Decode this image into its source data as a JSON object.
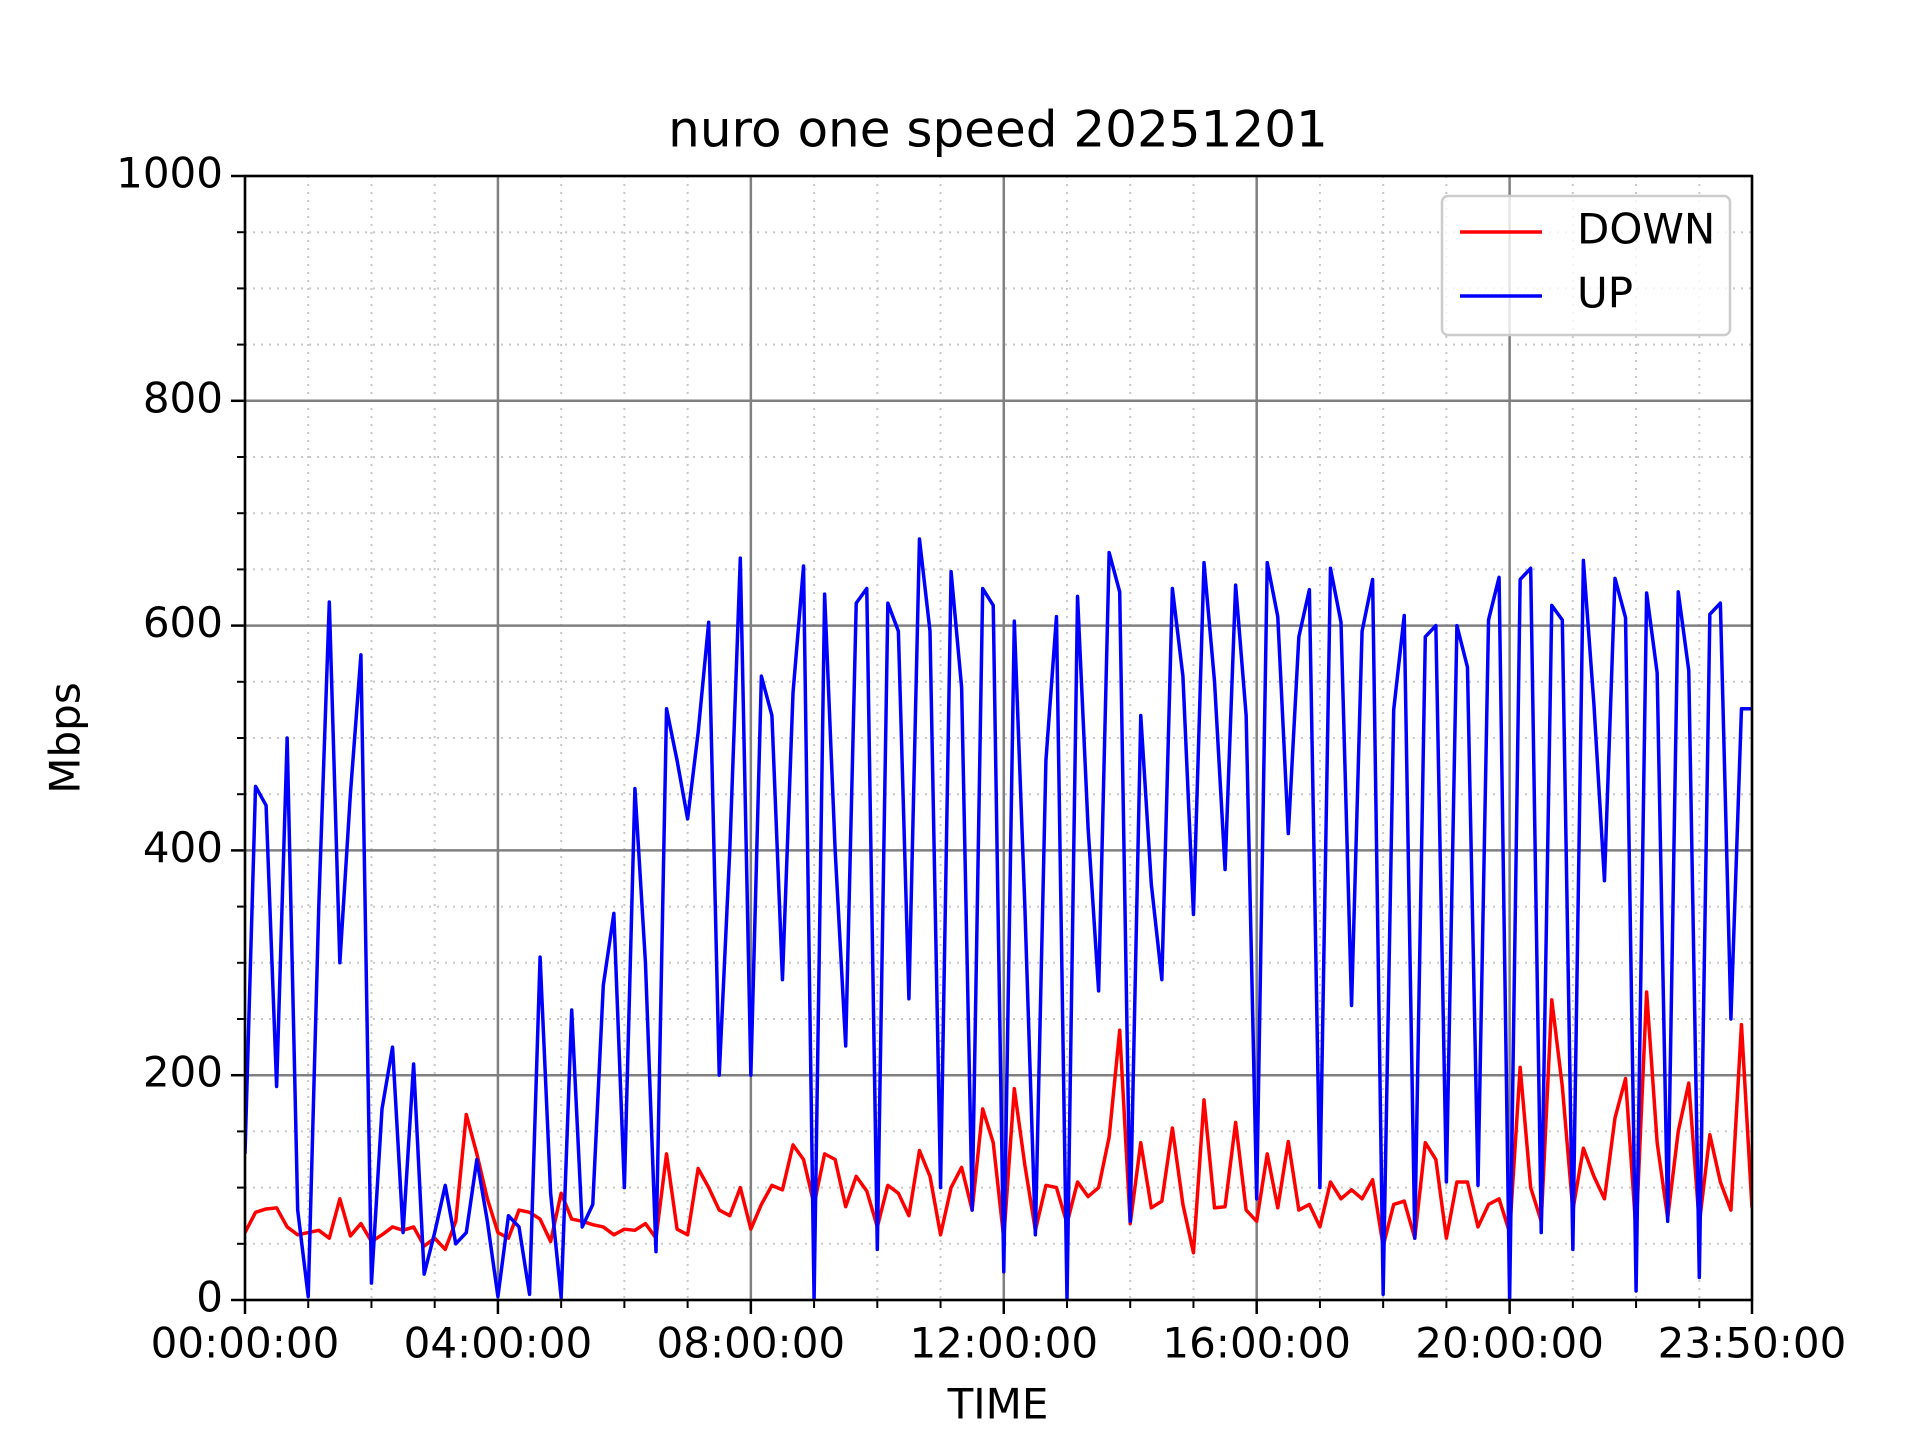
{
  "chart_data": {
    "type": "line",
    "title": "nuro one speed 20251201",
    "xlabel": "TIME",
    "ylabel": "Mbps",
    "x": [
      0,
      10,
      20,
      30,
      40,
      50,
      60,
      70,
      80,
      90,
      100,
      110,
      120,
      130,
      140,
      150,
      160,
      170,
      180,
      190,
      200,
      210,
      220,
      230,
      240,
      250,
      260,
      270,
      280,
      290,
      300,
      310,
      320,
      330,
      340,
      350,
      360,
      370,
      380,
      390,
      400,
      410,
      420,
      430,
      440,
      450,
      460,
      470,
      480,
      490,
      500,
      510,
      520,
      530,
      540,
      550,
      560,
      570,
      580,
      590,
      600,
      610,
      620,
      630,
      640,
      650,
      660,
      670,
      680,
      690,
      700,
      710,
      720,
      730,
      740,
      750,
      760,
      770,
      780,
      790,
      800,
      810,
      820,
      830,
      840,
      850,
      860,
      870,
      880,
      890,
      900,
      910,
      920,
      930,
      940,
      950,
      960,
      970,
      980,
      990,
      1000,
      1010,
      1020,
      1030,
      1040,
      1050,
      1060,
      1070,
      1080,
      1090,
      1100,
      1110,
      1120,
      1130,
      1140,
      1150,
      1160,
      1170,
      1180,
      1190,
      1200,
      1210,
      1220,
      1230,
      1240,
      1250,
      1260,
      1270,
      1280,
      1290,
      1300,
      1310,
      1320,
      1330,
      1340,
      1350,
      1360,
      1370,
      1380,
      1390,
      1400,
      1410,
      1420,
      1430
    ],
    "series": [
      {
        "name": "DOWN",
        "color": "#ff0000",
        "values": [
          60,
          78,
          81,
          82,
          65,
          58,
          60,
          62,
          55,
          90,
          57,
          68,
          52,
          58,
          65,
          62,
          65,
          48,
          55,
          45,
          70,
          165,
          130,
          90,
          60,
          55,
          80,
          78,
          72,
          52,
          95,
          72,
          70,
          67,
          65,
          58,
          63,
          62,
          68,
          55,
          130,
          63,
          58,
          117,
          100,
          80,
          75,
          100,
          63,
          85,
          102,
          98,
          138,
          125,
          85,
          130,
          125,
          83,
          110,
          97,
          65,
          102,
          95,
          75,
          133,
          110,
          58,
          100,
          118,
          80,
          170,
          140,
          55,
          188,
          120,
          62,
          102,
          100,
          68,
          105,
          92,
          100,
          145,
          240,
          68,
          140,
          82,
          88,
          153,
          85,
          42,
          178,
          82,
          83,
          158,
          80,
          70,
          130,
          82,
          141,
          80,
          85,
          65,
          105,
          90,
          98,
          90,
          107,
          48,
          85,
          88,
          55,
          140,
          125,
          55,
          105,
          105,
          65,
          85,
          90,
          60,
          207,
          100,
          70,
          267,
          190,
          80,
          135,
          110,
          90,
          162,
          197,
          60,
          274,
          140,
          73,
          150,
          193,
          68,
          147,
          105,
          80,
          245,
          82
        ]
      },
      {
        "name": "UP",
        "color": "#0000ff",
        "values": [
          130,
          457,
          440,
          190,
          500,
          80,
          3,
          350,
          621,
          300,
          450,
          574,
          15,
          170,
          225,
          60,
          210,
          23,
          60,
          102,
          50,
          60,
          125,
          70,
          3,
          75,
          65,
          5,
          305,
          95,
          2,
          258,
          65,
          85,
          280,
          344,
          100,
          455,
          300,
          43,
          526,
          480,
          428,
          505,
          603,
          200,
          400,
          660,
          200,
          555,
          520,
          285,
          540,
          653,
          0,
          628,
          400,
          226,
          620,
          633,
          45,
          620,
          595,
          268,
          677,
          595,
          100,
          648,
          545,
          80,
          633,
          618,
          25,
          604,
          350,
          58,
          480,
          608,
          0,
          626,
          420,
          275,
          665,
          630,
          70,
          520,
          370,
          285,
          633,
          555,
          343,
          656,
          550,
          383,
          636,
          520,
          90,
          656,
          608,
          415,
          590,
          632,
          100,
          651,
          603,
          262,
          595,
          641,
          5,
          525,
          609,
          55,
          590,
          600,
          105,
          600,
          563,
          102,
          605,
          643,
          0,
          641,
          651,
          60,
          618,
          605,
          45,
          658,
          530,
          373,
          642,
          607,
          8,
          629,
          558,
          70,
          630,
          560,
          20,
          610,
          620,
          250,
          526,
          526
        ]
      }
    ],
    "xlim": [
      0,
      1430
    ],
    "xticks": [
      {
        "value": 0,
        "label": "00:00:00"
      },
      {
        "value": 240,
        "label": "04:00:00"
      },
      {
        "value": 480,
        "label": "08:00:00"
      },
      {
        "value": 720,
        "label": "12:00:00"
      },
      {
        "value": 960,
        "label": "16:00:00"
      },
      {
        "value": 1200,
        "label": "20:00:00"
      },
      {
        "value": 1430,
        "label": "23:50:00"
      }
    ],
    "xminorticks": [
      60,
      120,
      180,
      300,
      360,
      420,
      540,
      600,
      660,
      780,
      840,
      900,
      1020,
      1080,
      1140,
      1260,
      1320,
      1380
    ],
    "ylim": [
      0,
      1000
    ],
    "yticks": [
      0,
      200,
      400,
      600,
      800,
      1000
    ],
    "yminorticks": [
      50,
      100,
      150,
      250,
      300,
      350,
      450,
      500,
      550,
      650,
      700,
      750,
      850,
      900,
      950
    ],
    "grid": true,
    "minor_grid": true,
    "legend": "upper right"
  }
}
